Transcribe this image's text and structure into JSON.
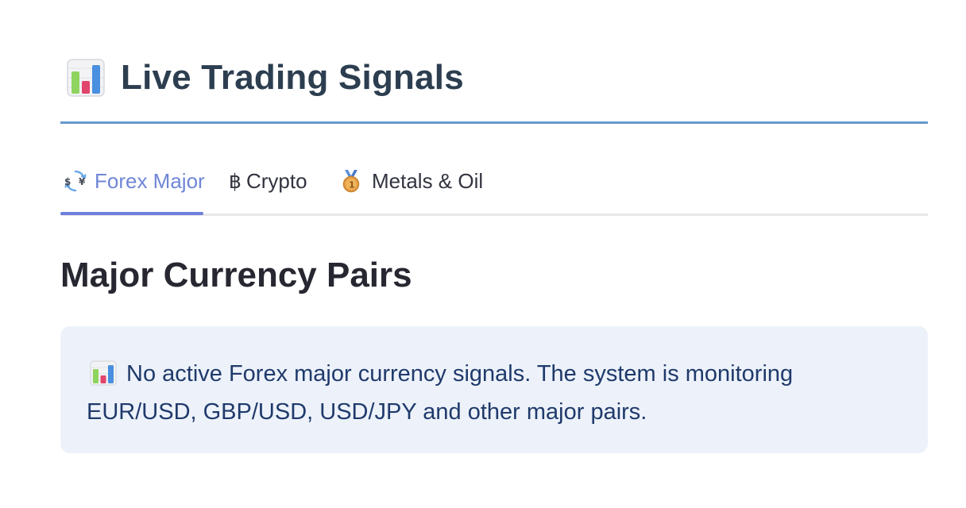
{
  "header": {
    "title": "Live Trading Signals",
    "icon": "bar-chart-icon"
  },
  "tabs": [
    {
      "label": "Forex Major",
      "icon": "currency-exchange-icon",
      "active": true
    },
    {
      "label": "Crypto",
      "icon": "bitcoin-icon",
      "active": false
    },
    {
      "label": "Metals & Oil",
      "icon": "medal-icon",
      "active": false
    }
  ],
  "main": {
    "section_title": "Major Currency Pairs",
    "info": {
      "icon": "bar-chart-icon",
      "message": "No active Forex major currency signals. The system is monitoring EUR/USD, GBP/USD, USD/JPY and other major pairs."
    }
  },
  "colors": {
    "accent": "#6f7fdc",
    "header_rule": "#6699cc",
    "info_bg": "#edf2fa",
    "info_text": "#1f3a6b"
  }
}
